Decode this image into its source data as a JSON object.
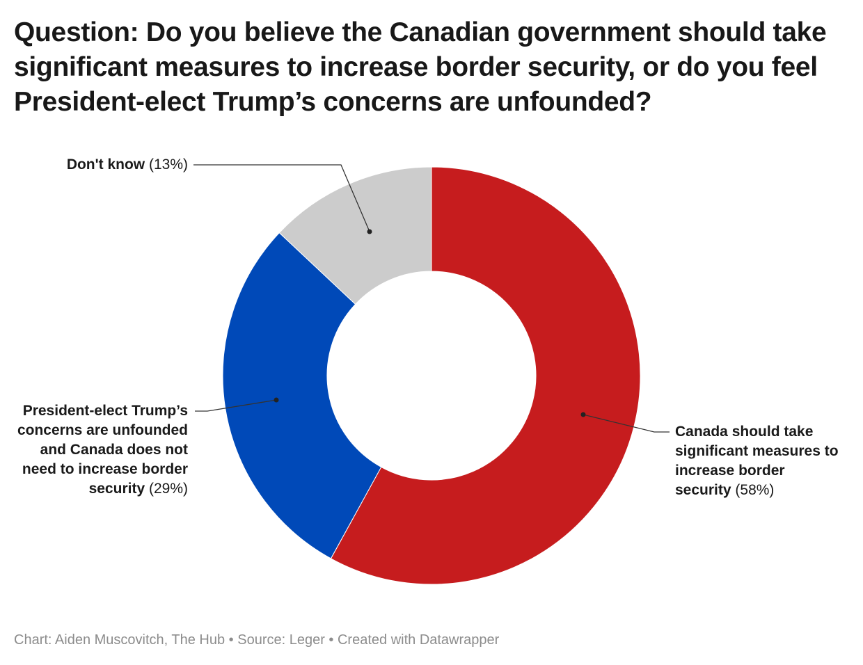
{
  "title": "Question: Do you believe the Canadian government should take significant measures to increase border security, or do you feel President-elect Trump’s concerns are unfounded?",
  "footer": "Chart: Aiden Muscovitch, The Hub • Source: Leger • Created with Datawrapper",
  "chart_data": {
    "type": "pie",
    "donut": true,
    "title": "Question: Do you believe the Canadian government should take significant measures to increase border security, or do you feel President-elect Trump’s concerns are unfounded?",
    "slices": [
      {
        "label": "Canada should take significant measures to increase border security",
        "value": 58,
        "value_label": "(58%)",
        "color": "#c61c1e"
      },
      {
        "label": "President-elect Trump’s concerns are unfounded and Canada does not need to increase border security",
        "value": 29,
        "value_label": "(29%)",
        "color": "#0049b8"
      },
      {
        "label": "Don't know",
        "value": 13,
        "value_label": "(13%)",
        "color": "#cccccc"
      }
    ]
  }
}
